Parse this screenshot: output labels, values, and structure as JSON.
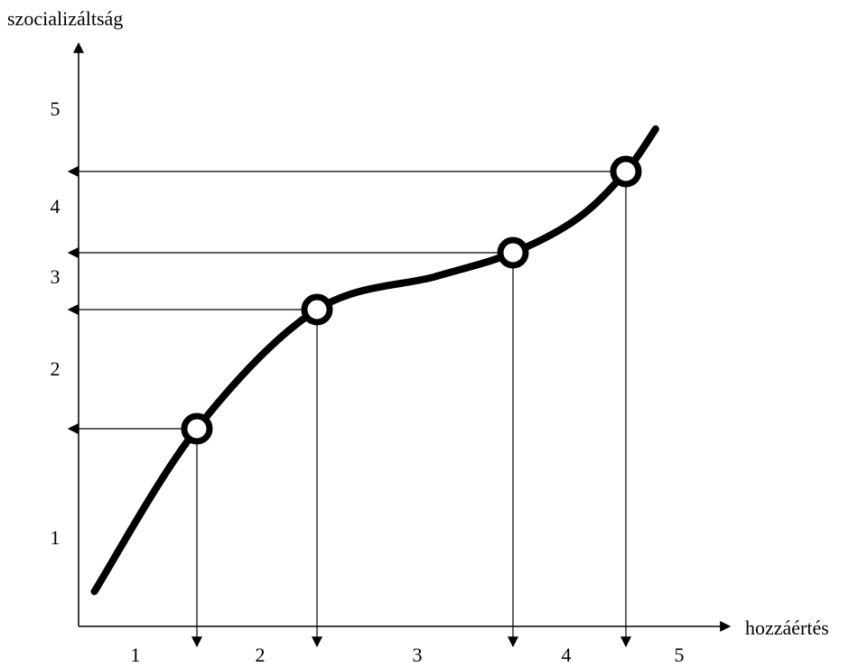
{
  "chart_data": {
    "type": "line",
    "xlabel": "hozzáértés",
    "ylabel": "szocializáltság",
    "x_tick_labels": [
      "1",
      "2",
      "3",
      "4",
      "5"
    ],
    "y_tick_labels": [
      "1",
      "2",
      "3",
      "4",
      "5"
    ],
    "grid": false,
    "legend": "none",
    "curve_color": "#000000",
    "series": [
      {
        "values": [
          {
            "x": 0.2,
            "y": 0.3
          },
          {
            "x": 1.5,
            "y": 1.7
          },
          {
            "x": 2.5,
            "y": 2.7
          },
          {
            "x": 3.5,
            "y": 3.05
          },
          {
            "x": 4.15,
            "y": 3.3
          },
          {
            "x": 4.7,
            "y": 3.75
          },
          {
            "x": 5.1,
            "y": 4.35
          },
          {
            "x": 5.35,
            "y": 4.9
          }
        ]
      }
    ],
    "marked_points": [
      {
        "x": 1.5,
        "y": 1.7
      },
      {
        "x": 2.5,
        "y": 2.7
      },
      {
        "x": 4.15,
        "y": 3.3
      },
      {
        "x": 5.1,
        "y": 4.35
      }
    ]
  }
}
